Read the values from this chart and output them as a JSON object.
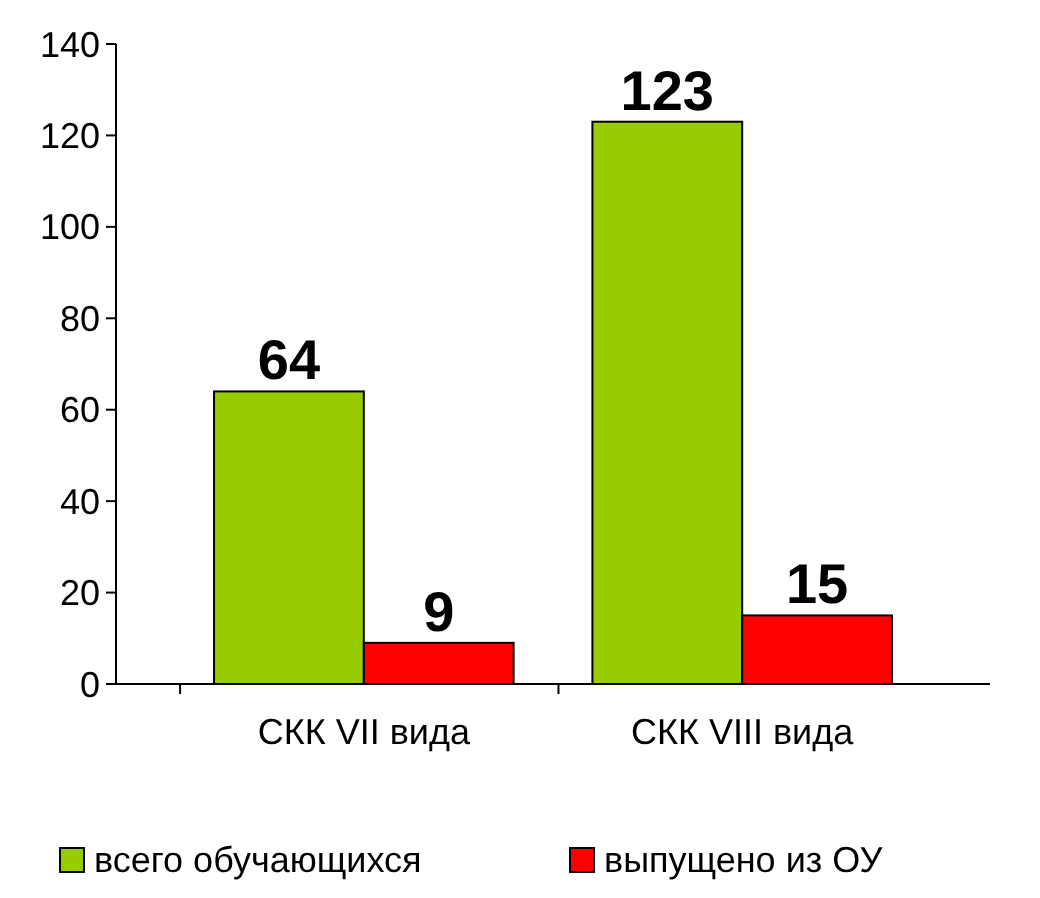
{
  "chart_data": {
    "type": "bar",
    "categories": [
      "СКК VII вида",
      "СКК VIII вида"
    ],
    "series": [
      {
        "name": "всего обучающихся",
        "color": "#99cc00",
        "values": [
          64,
          123
        ]
      },
      {
        "name": "выпущено из ОУ",
        "color": "#ff0000",
        "values": [
          9,
          15
        ]
      }
    ],
    "ylim": [
      0,
      140
    ],
    "yticks": [
      0,
      20,
      40,
      60,
      80,
      100,
      120,
      140
    ],
    "data_labels": true,
    "legend": "bottom"
  }
}
